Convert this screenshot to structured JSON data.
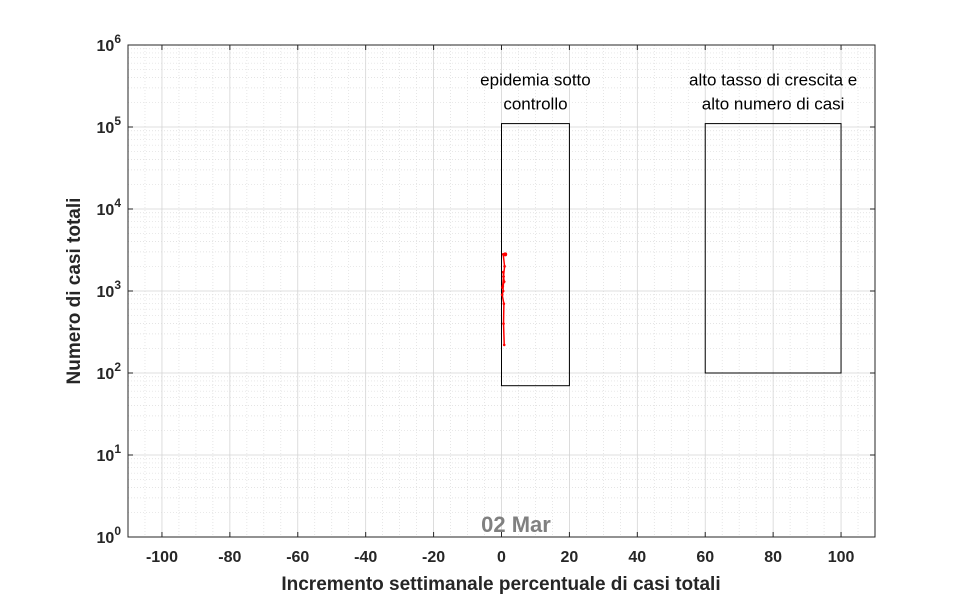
{
  "chart_data": {
    "type": "line",
    "title": "",
    "xlabel": "Incremento settimanale percentuale di casi totali",
    "ylabel": "Numero di casi totali",
    "xlim": [
      -110,
      110
    ],
    "ylim": [
      1,
      1000000
    ],
    "y_scale": "log",
    "grid": true,
    "minor_grid": true,
    "x_ticks": [
      -100,
      -80,
      -60,
      -40,
      -20,
      0,
      20,
      40,
      60,
      80,
      100
    ],
    "x_tick_labels": [
      "-100",
      "-80",
      "-60",
      "-40",
      "-20",
      "0",
      "20",
      "40",
      "60",
      "80",
      "100"
    ],
    "y_tick_exponents": [
      "0",
      "1",
      "2",
      "3",
      "4",
      "5",
      "6"
    ],
    "y_tick_base": "10",
    "date_label": "02 Mar",
    "regions": [
      {
        "label_lines": [
          "epidemia sotto",
          "controllo"
        ],
        "x": [
          0,
          20
        ],
        "y": [
          70,
          110000
        ]
      },
      {
        "label_lines": [
          "alto tasso di crescita e",
          "alto numero di casi"
        ],
        "x": [
          60,
          100
        ],
        "y": [
          100,
          110000
        ]
      }
    ],
    "series": [
      {
        "color": "#ff0000",
        "x": [
          0.8,
          0.6,
          0.7,
          0.2,
          0.5,
          0.4,
          0.8,
          0.6,
          0.5,
          0.7,
          0.3,
          0.6,
          0.9,
          0.5
        ],
        "y": [
          220,
          400,
          700,
          900,
          1000,
          1150,
          1300,
          1500,
          1700,
          1300,
          1100,
          1500,
          2000,
          2800
        ]
      }
    ]
  }
}
